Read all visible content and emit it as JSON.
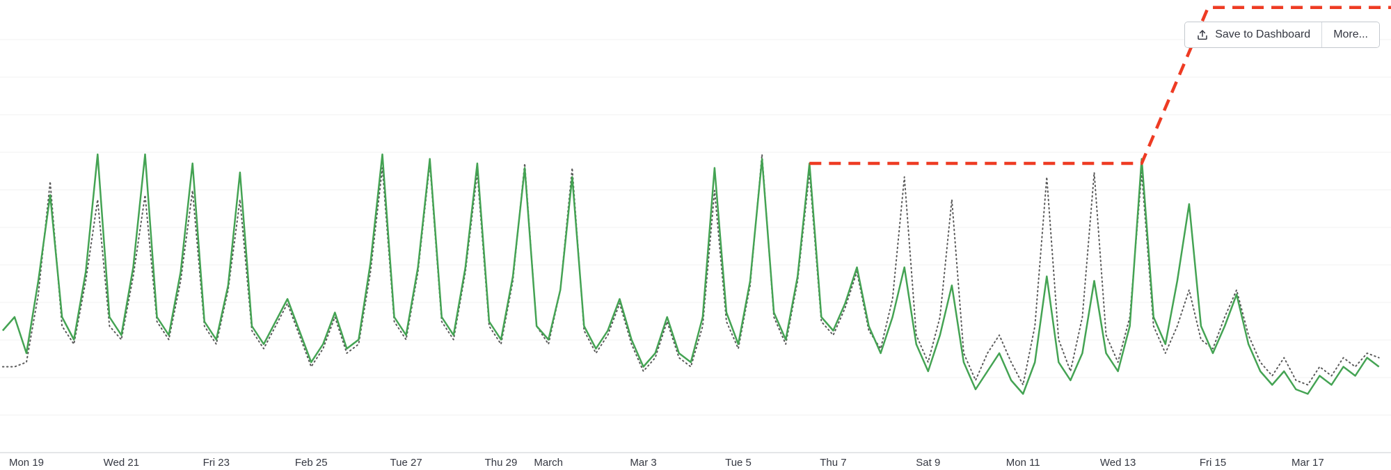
{
  "toolbar": {
    "save_button": "Save to Dashboard",
    "more_button": "More..."
  },
  "colors": {
    "series_green": "#44a353",
    "series_dotted": "#5a5a5a",
    "series_red": "#ee3b23",
    "grid": "#f0f0f0",
    "axis": "#c9ccd2",
    "label_text": "#343741"
  },
  "chart_data": {
    "type": "line",
    "title": "",
    "xlabel": "",
    "ylabel": "",
    "grid": true,
    "legend": "none",
    "y_axis": {
      "min": 0,
      "max": 100,
      "labels_visible": false
    },
    "x_axis": {
      "tick_labels": [
        "Mon 19",
        "Wed 21",
        "Fri 23",
        "Feb 25",
        "Tue 27",
        "Thu 29",
        "March",
        "Mar 3",
        "Tue 5",
        "Thu 7",
        "Sat 9",
        "Mon 11",
        "Wed 13",
        "Fri 15",
        "Mar 17"
      ],
      "tick_days": [
        0,
        2,
        4,
        6,
        8,
        10,
        11,
        13,
        15,
        17,
        19,
        21,
        23,
        25,
        27
      ],
      "start_day": -0.5,
      "step_days": 0.25
    },
    "series": [
      {
        "name": "gray-dotted",
        "style": "dotted",
        "color": "#5a5a5a",
        "width": 2,
        "values": [
          19,
          19,
          20,
          35,
          60,
          28,
          24,
          38,
          56,
          28,
          25,
          39,
          57,
          29,
          25,
          38,
          58,
          28,
          24,
          36,
          56,
          27,
          23,
          28,
          33,
          26,
          19,
          23,
          30,
          22,
          24,
          40,
          63,
          29,
          25,
          40,
          64,
          29,
          25,
          40,
          62,
          28,
          24,
          38,
          64,
          28,
          24,
          36,
          63,
          27,
          22,
          26,
          33,
          24,
          18,
          21,
          29,
          21,
          19,
          28,
          58,
          29,
          23,
          37,
          66,
          30,
          24,
          38,
          62,
          29,
          26,
          32,
          40,
          27,
          23,
          34,
          61,
          26,
          20,
          30,
          56,
          22,
          16,
          22,
          26,
          20,
          15,
          28,
          61,
          25,
          18,
          30,
          62,
          26,
          20,
          30,
          62,
          28,
          22,
          28,
          36,
          25,
          23,
          30,
          36,
          26,
          20,
          17,
          21,
          16,
          15,
          19,
          17,
          21,
          19,
          22,
          21
        ]
      },
      {
        "name": "green-solid",
        "style": "solid",
        "color": "#44a353",
        "width": 2.5,
        "values": [
          27,
          30,
          22,
          38,
          57,
          30,
          25,
          40,
          66,
          30,
          26,
          41,
          66,
          30,
          26,
          40,
          64,
          29,
          25,
          37,
          62,
          28,
          24,
          29,
          34,
          27,
          20,
          24,
          31,
          23,
          25,
          42,
          66,
          30,
          26,
          41,
          65,
          30,
          26,
          41,
          64,
          29,
          25,
          39,
          63,
          28,
          25,
          36,
          61,
          28,
          23,
          27,
          34,
          25,
          19,
          22,
          30,
          22,
          20,
          30,
          63,
          31,
          24,
          38,
          65,
          31,
          25,
          39,
          64,
          30,
          27,
          33,
          41,
          28,
          22,
          30,
          41,
          24,
          18,
          26,
          37,
          20,
          14,
          18,
          22,
          16,
          13,
          20,
          39,
          20,
          16,
          22,
          38,
          22,
          18,
          28,
          65,
          30,
          24,
          38,
          55,
          28,
          22,
          28,
          35,
          24,
          18,
          15,
          18,
          14,
          13,
          17,
          15,
          19,
          17,
          21,
          19
        ]
      },
      {
        "name": "red-dashed",
        "style": "dashed",
        "color": "#ee3b23",
        "width": 4.5,
        "points": [
          [
            16.5,
            64
          ],
          [
            23.5,
            64
          ],
          [
            24.9,
            98.5
          ],
          [
            29,
            98.5
          ]
        ]
      }
    ]
  }
}
